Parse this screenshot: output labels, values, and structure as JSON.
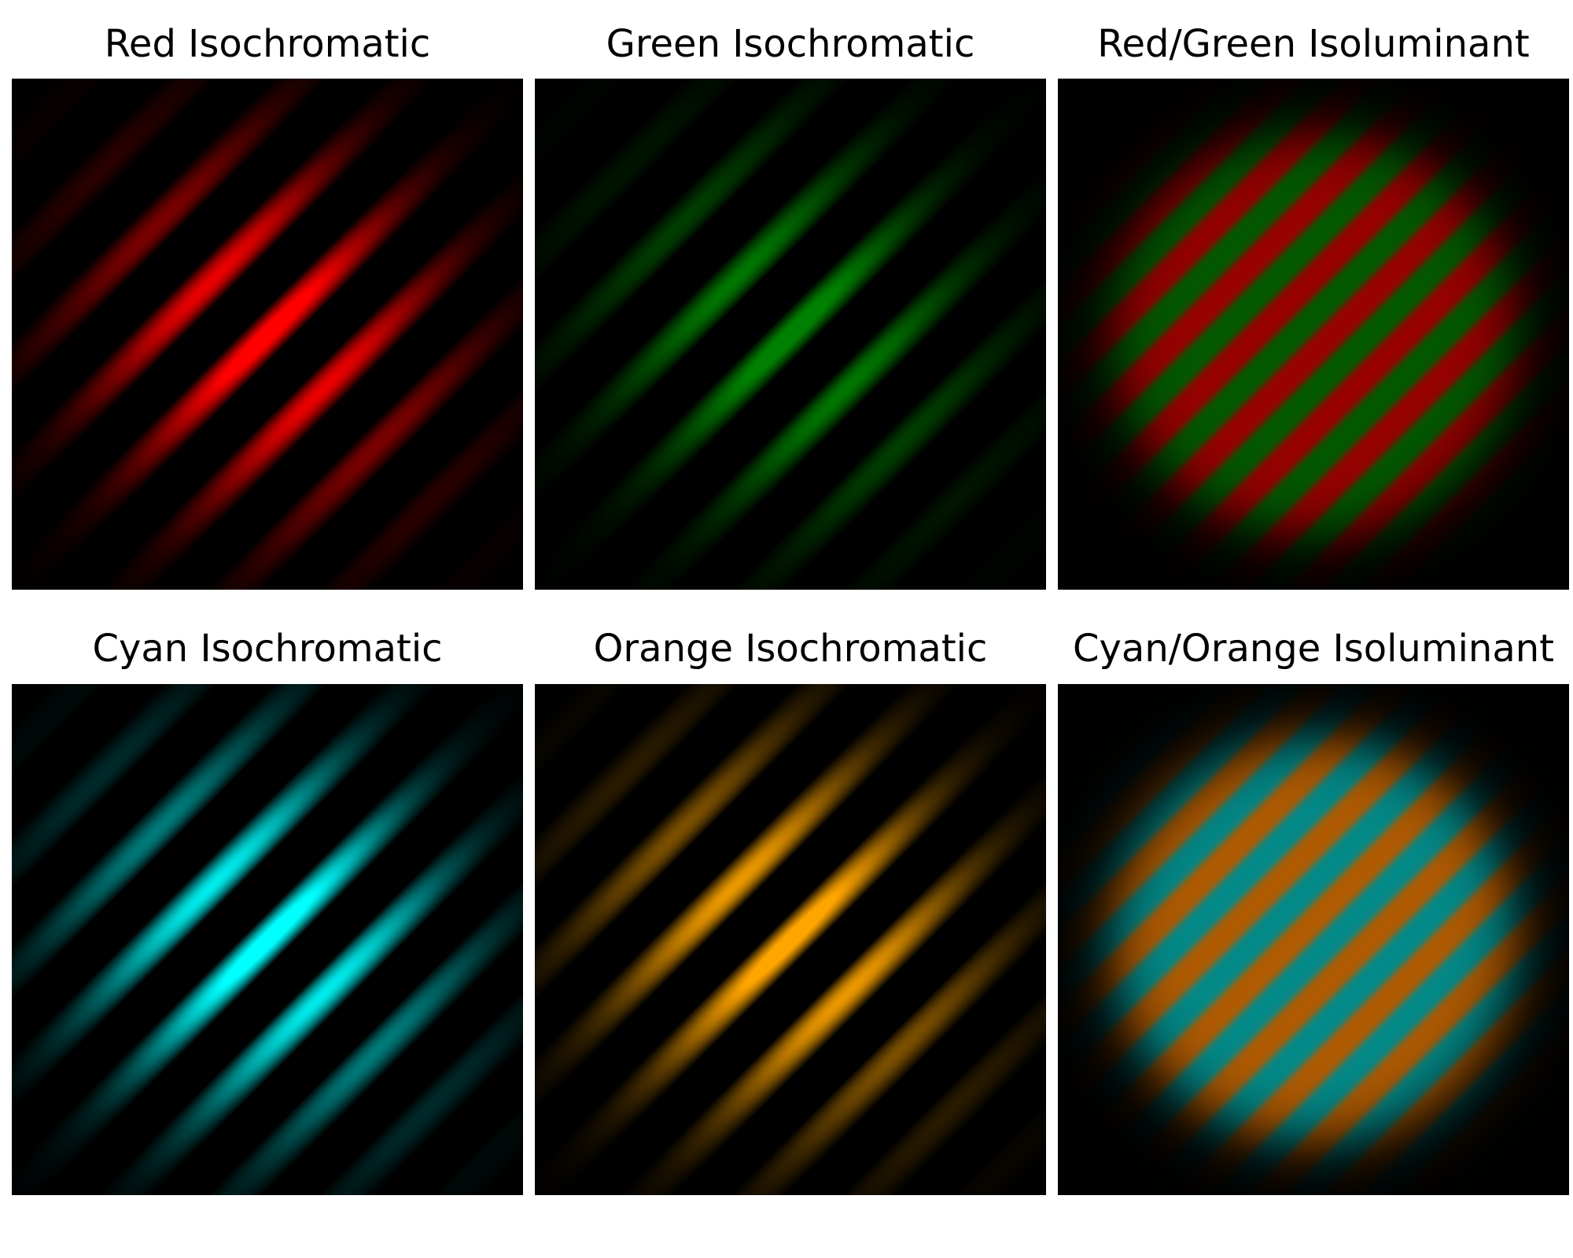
{
  "figure": {
    "panels": [
      {
        "title": "Red Isochromatic",
        "kind": "isochromatic",
        "color_a": "#ff0000"
      },
      {
        "title": "Green Isochromatic",
        "kind": "isochromatic",
        "color_a": "#008000"
      },
      {
        "title": "Red/Green Isoluminant",
        "kind": "isoluminant",
        "color_a": "#9a0000",
        "color_b": "#005a00"
      },
      {
        "title": "Cyan Isochromatic",
        "kind": "isochromatic",
        "color_a": "#00ffff"
      },
      {
        "title": "Orange Isochromatic",
        "kind": "isochromatic",
        "color_a": "#ffa500"
      },
      {
        "title": "Cyan/Orange Isoluminant",
        "kind": "isoluminant",
        "color_a": "#008b8b",
        "color_b": "#b35a00"
      }
    ]
  }
}
